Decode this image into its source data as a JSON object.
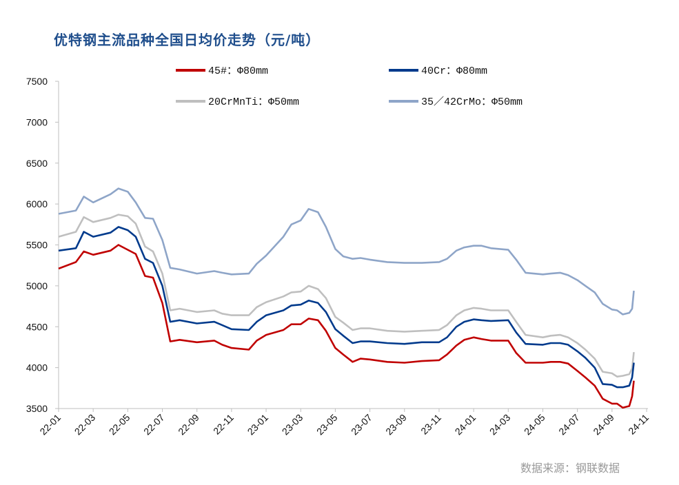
{
  "title": "优特钢主流品种全国日均价走势（元/吨）",
  "source": "数据来源：钢联数据",
  "chart_data": {
    "type": "line",
    "title": "优特钢主流品种全国日均价走势（元/吨）",
    "xlabel": "",
    "ylabel": "",
    "ylim": [
      3500,
      7500
    ],
    "yticks": [
      "3500",
      "4000",
      "4500",
      "5000",
      "5500",
      "6000",
      "6500",
      "7000",
      "7500"
    ],
    "xlim": [
      "2022-01",
      "2024-11"
    ],
    "xticks": [
      "22-01",
      "22-03",
      "22-05",
      "22-07",
      "22-09",
      "22-11",
      "23-01",
      "23-03",
      "23-05",
      "23-07",
      "23-09",
      "23-11",
      "24-01",
      "24-03",
      "24-05",
      "24-07",
      "24-09",
      "24-11"
    ],
    "grid": false,
    "legend": "top",
    "x": [
      "2022-01-01",
      "2022-02-01",
      "2022-02-15",
      "2022-03-01",
      "2022-04-01",
      "2022-04-15",
      "2022-05-01",
      "2022-05-15",
      "2022-06-01",
      "2022-06-15",
      "2022-07-01",
      "2022-07-15",
      "2022-08-01",
      "2022-09-01",
      "2022-10-01",
      "2022-10-15",
      "2022-11-01",
      "2022-12-01",
      "2022-12-15",
      "2023-01-01",
      "2023-02-01",
      "2023-02-15",
      "2023-03-01",
      "2023-03-15",
      "2023-04-01",
      "2023-04-15",
      "2023-05-01",
      "2023-05-15",
      "2023-06-01",
      "2023-06-15",
      "2023-07-01",
      "2023-08-01",
      "2023-09-01",
      "2023-10-01",
      "2023-11-01",
      "2023-11-15",
      "2023-12-01",
      "2023-12-15",
      "2024-01-01",
      "2024-01-15",
      "2024-02-01",
      "2024-03-01",
      "2024-03-15",
      "2024-04-01",
      "2024-05-01",
      "2024-05-15",
      "2024-06-01",
      "2024-06-15",
      "2024-07-01",
      "2024-07-15",
      "2024-08-01",
      "2024-08-15",
      "2024-09-01",
      "2024-09-10",
      "2024-09-20",
      "2024-10-01",
      "2024-10-06",
      "2024-10-09"
    ],
    "series": [
      {
        "name": "45#：Φ80mm",
        "color": "#c00000",
        "values": [
          5210,
          5290,
          5420,
          5380,
          5430,
          5500,
          5440,
          5390,
          5120,
          5100,
          4790,
          4320,
          4340,
          4310,
          4330,
          4280,
          4240,
          4220,
          4330,
          4400,
          4460,
          4530,
          4530,
          4600,
          4580,
          4450,
          4240,
          4160,
          4070,
          4110,
          4100,
          4070,
          4060,
          4080,
          4090,
          4160,
          4270,
          4340,
          4370,
          4350,
          4330,
          4330,
          4180,
          4060,
          4060,
          4070,
          4070,
          4050,
          3960,
          3880,
          3780,
          3620,
          3560,
          3560,
          3510,
          3530,
          3650,
          3840
        ]
      },
      {
        "name": "40Cr：Φ80mm",
        "color": "#003a8c",
        "values": [
          5430,
          5460,
          5660,
          5600,
          5650,
          5720,
          5680,
          5600,
          5330,
          5280,
          5000,
          4560,
          4580,
          4540,
          4560,
          4520,
          4470,
          4460,
          4560,
          4640,
          4700,
          4760,
          4770,
          4820,
          4790,
          4680,
          4470,
          4390,
          4300,
          4320,
          4320,
          4300,
          4290,
          4310,
          4310,
          4370,
          4500,
          4560,
          4590,
          4580,
          4570,
          4580,
          4430,
          4290,
          4280,
          4300,
          4300,
          4280,
          4200,
          4120,
          4000,
          3800,
          3790,
          3760,
          3760,
          3780,
          3880,
          4060
        ]
      },
      {
        "name": "20CrMnTi：Φ50mm",
        "color": "#bfbfbf",
        "values": [
          5600,
          5660,
          5840,
          5780,
          5830,
          5870,
          5850,
          5760,
          5480,
          5420,
          5150,
          4700,
          4720,
          4680,
          4700,
          4660,
          4640,
          4640,
          4740,
          4800,
          4870,
          4920,
          4930,
          5000,
          4960,
          4850,
          4620,
          4550,
          4460,
          4480,
          4480,
          4450,
          4440,
          4450,
          4460,
          4520,
          4640,
          4700,
          4730,
          4720,
          4700,
          4700,
          4560,
          4400,
          4370,
          4390,
          4400,
          4370,
          4300,
          4220,
          4110,
          3950,
          3930,
          3890,
          3900,
          3920,
          3990,
          4190
        ]
      },
      {
        "name": "35／42CrMo：Φ50mm",
        "color": "#8ea5c8",
        "values": [
          5880,
          5920,
          6090,
          6020,
          6120,
          6190,
          6150,
          6020,
          5830,
          5820,
          5560,
          5220,
          5200,
          5150,
          5180,
          5160,
          5140,
          5150,
          5270,
          5370,
          5600,
          5750,
          5800,
          5940,
          5900,
          5720,
          5450,
          5360,
          5330,
          5340,
          5320,
          5290,
          5280,
          5280,
          5290,
          5330,
          5430,
          5470,
          5490,
          5490,
          5460,
          5440,
          5320,
          5160,
          5140,
          5150,
          5160,
          5130,
          5070,
          5000,
          4920,
          4780,
          4710,
          4700,
          4650,
          4670,
          4720,
          4940
        ]
      }
    ]
  }
}
